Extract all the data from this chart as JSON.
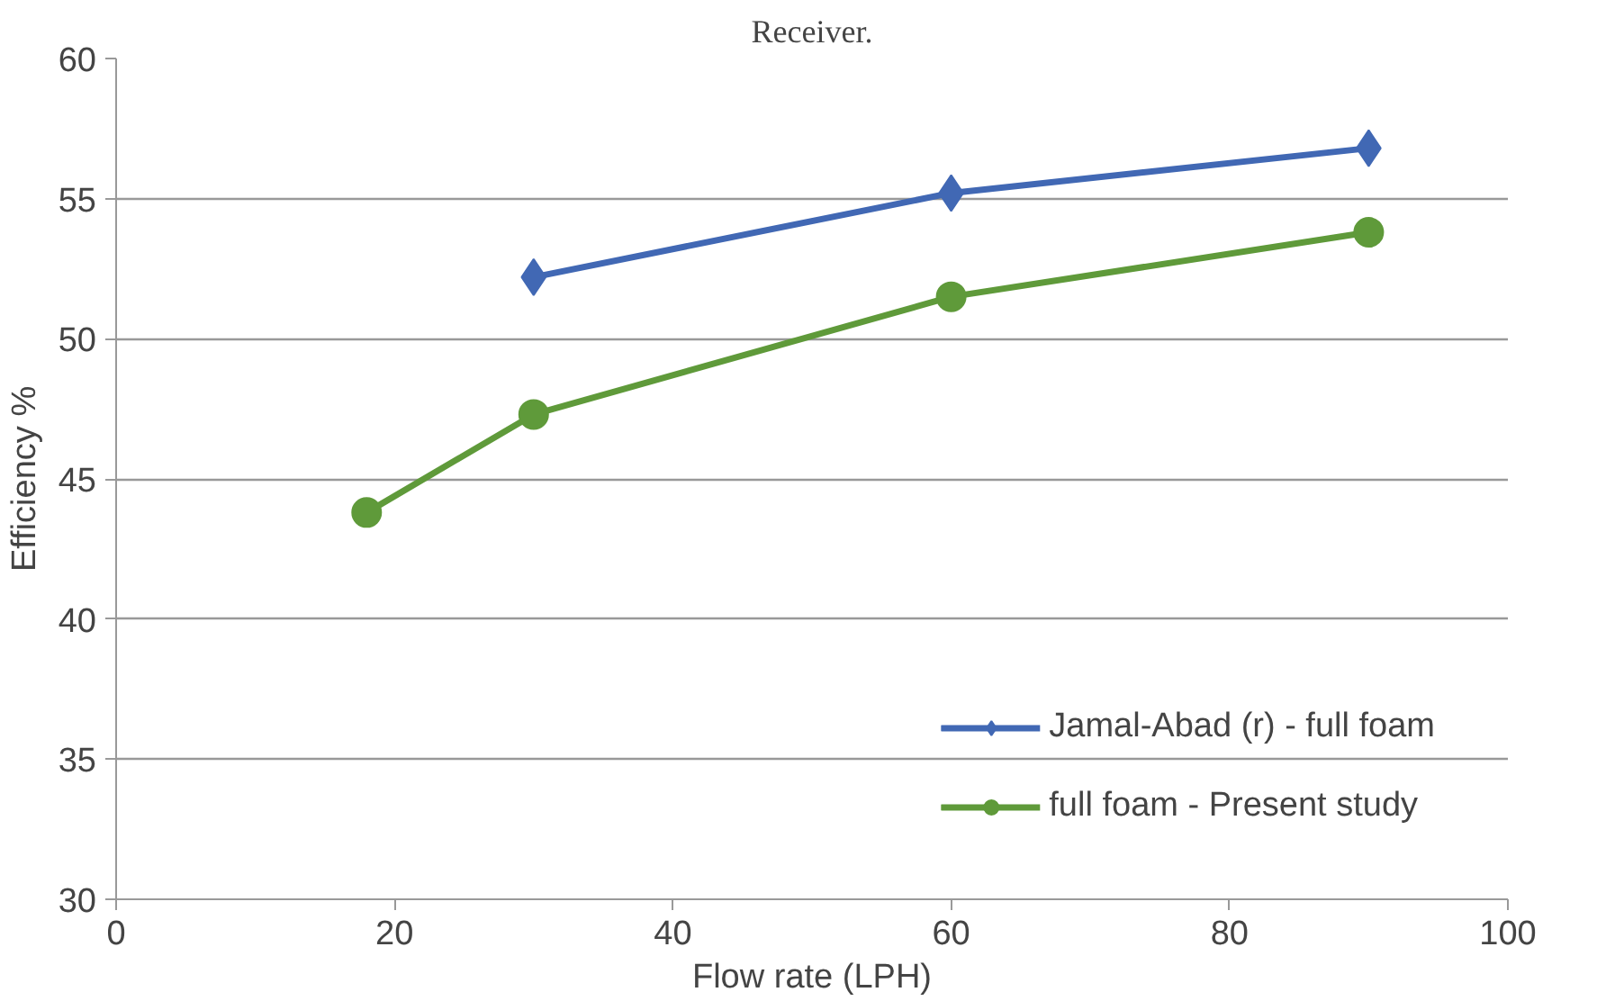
{
  "chart_data": {
    "type": "line",
    "title": "Receiver.",
    "xlabel": "Flow rate (LPH)",
    "ylabel": "Efficiency %",
    "xlim": [
      0,
      100
    ],
    "xticks": [
      0,
      20,
      40,
      60,
      80,
      100
    ],
    "ylim": [
      30,
      60
    ],
    "yticks": [
      30,
      35,
      40,
      45,
      50,
      55,
      60
    ],
    "grid": "y",
    "legend": "bottom right",
    "series": [
      {
        "name": "Jamal-Abad (r) - full foam",
        "color": "#4168b4",
        "marker": "diamond",
        "x": [
          30,
          60,
          90
        ],
        "values": [
          52.2,
          55.2,
          56.8
        ]
      },
      {
        "name": "full foam - Present study",
        "color": "#5f9a3a",
        "marker": "circle",
        "x": [
          18,
          30,
          60,
          90
        ],
        "values": [
          43.8,
          47.3,
          51.5,
          53.8
        ]
      }
    ]
  }
}
